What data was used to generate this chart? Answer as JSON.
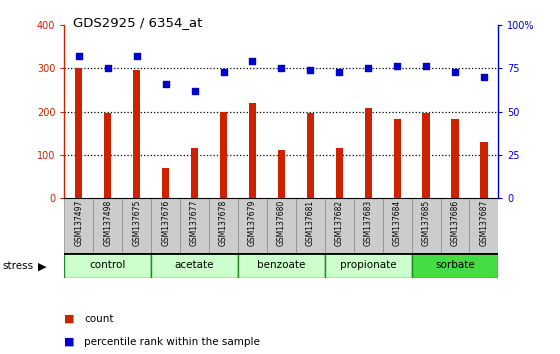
{
  "title": "GDS2925 / 6354_at",
  "samples": [
    "GSM137497",
    "GSM137498",
    "GSM137675",
    "GSM137676",
    "GSM137677",
    "GSM137678",
    "GSM137679",
    "GSM137680",
    "GSM137681",
    "GSM137682",
    "GSM137683",
    "GSM137684",
    "GSM137685",
    "GSM137686",
    "GSM137687"
  ],
  "counts": [
    300,
    197,
    295,
    70,
    115,
    198,
    220,
    112,
    197,
    115,
    207,
    182,
    197,
    182,
    130
  ],
  "percentile": [
    82,
    75,
    82,
    66,
    62,
    73,
    79,
    75,
    74,
    73,
    75,
    76,
    76,
    73,
    70
  ],
  "groups": [
    {
      "label": "control",
      "start": 0,
      "end": 2,
      "color": "#ccffcc"
    },
    {
      "label": "acetate",
      "start": 3,
      "end": 5,
      "color": "#ccffcc"
    },
    {
      "label": "benzoate",
      "start": 6,
      "end": 8,
      "color": "#ccffcc"
    },
    {
      "label": "propionate",
      "start": 9,
      "end": 11,
      "color": "#ccffcc"
    },
    {
      "label": "sorbate",
      "start": 12,
      "end": 14,
      "color": "#44dd44"
    }
  ],
  "bar_color": "#cc2200",
  "dot_color": "#0000cc",
  "left_ylim": [
    0,
    400
  ],
  "right_ylim": [
    0,
    100
  ],
  "left_yticks": [
    0,
    100,
    200,
    300,
    400
  ],
  "right_yticks": [
    0,
    25,
    50,
    75,
    100
  ],
  "right_yticklabels": [
    "0",
    "25",
    "50",
    "75",
    "100%"
  ],
  "dotted_line_color": "#333333",
  "bg_color": "#ffffff",
  "label_box_color": "#cccccc",
  "label_box_edge": "#999999"
}
